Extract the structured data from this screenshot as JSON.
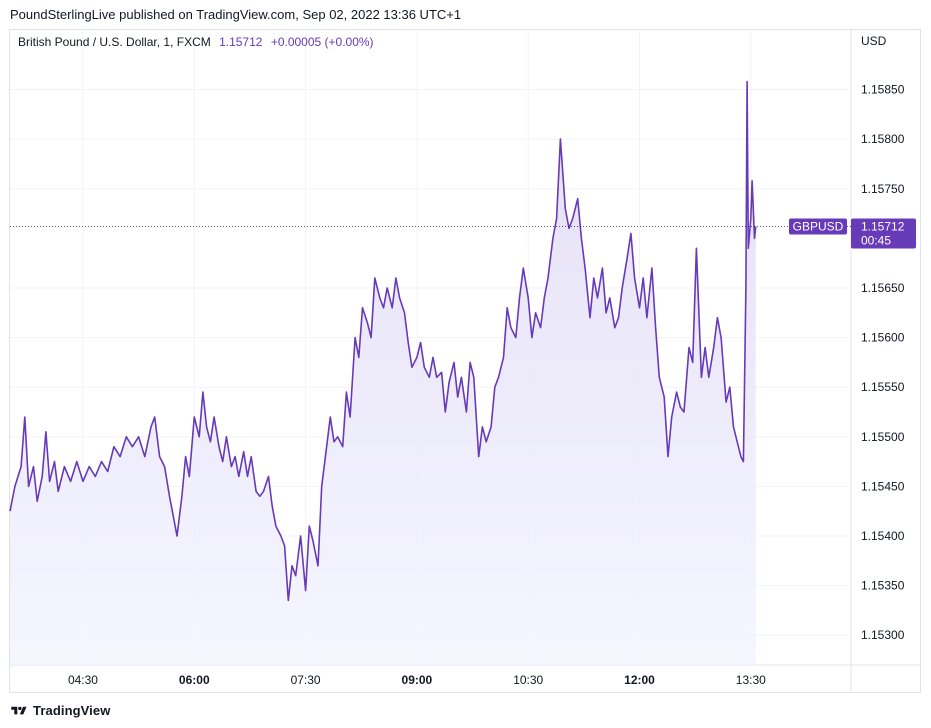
{
  "header": {
    "publisher_line": "PoundSterlingLive published on TradingView.com, Sep 02, 2022 13:36 UTC+1"
  },
  "legend": {
    "symbol": "British Pound / U.S. Dollar, 1, FXCM",
    "last": "1.15712",
    "change": "+0.00005 (+0.00%)"
  },
  "footer": {
    "brand": "TradingView",
    "logo_icon": "tradingview-logo-icon"
  },
  "colors": {
    "line": "#673ab7",
    "fill_top": "#e3ddf5",
    "fill_bottom": "#f4f5ff",
    "grid": "#f0f3fa",
    "text": "#131722"
  },
  "chart_data": {
    "type": "area",
    "y_axis_label": "USD",
    "ylim": [
      1.1527,
      1.1591
    ],
    "y_ticks": [
      "1.15850",
      "1.15800",
      "1.15750",
      "1.15650",
      "1.15600",
      "1.15550",
      "1.15500",
      "1.15450",
      "1.15400",
      "1.15350",
      "1.15300"
    ],
    "x_ticks": [
      {
        "label": "04:30",
        "time": "04:30",
        "bold": false
      },
      {
        "label": "06:00",
        "time": "06:00",
        "bold": true
      },
      {
        "label": "07:30",
        "time": "07:30",
        "bold": false
      },
      {
        "label": "09:00",
        "time": "09:00",
        "bold": true
      },
      {
        "label": "10:30",
        "time": "10:30",
        "bold": false
      },
      {
        "label": "12:00",
        "time": "12:00",
        "bold": true
      },
      {
        "label": "13:30",
        "time": "13:30",
        "bold": false
      }
    ],
    "x_range": [
      "03:31",
      "14:51"
    ],
    "last_price": 1.15712,
    "price_label": {
      "symbol": "GBPUSD",
      "value": "1.15712",
      "countdown": "00:45"
    },
    "series": [
      {
        "values": [
          [
            "03:31",
            1.15425
          ],
          [
            "03:35",
            1.1545
          ],
          [
            "03:40",
            1.1547
          ],
          [
            "03:43",
            1.1552
          ],
          [
            "03:46",
            1.1545
          ],
          [
            "03:50",
            1.1547
          ],
          [
            "03:53",
            1.15435
          ],
          [
            "03:57",
            1.1546
          ],
          [
            "04:00",
            1.15505
          ],
          [
            "04:03",
            1.15455
          ],
          [
            "04:07",
            1.15475
          ],
          [
            "04:10",
            1.15445
          ],
          [
            "04:15",
            1.1547
          ],
          [
            "04:20",
            1.15455
          ],
          [
            "04:25",
            1.15475
          ],
          [
            "04:30",
            1.15455
          ],
          [
            "04:35",
            1.1547
          ],
          [
            "04:40",
            1.1546
          ],
          [
            "04:45",
            1.15475
          ],
          [
            "04:50",
            1.15465
          ],
          [
            "04:55",
            1.1549
          ],
          [
            "05:00",
            1.1548
          ],
          [
            "05:05",
            1.155
          ],
          [
            "05:10",
            1.1549
          ],
          [
            "05:15",
            1.155
          ],
          [
            "05:20",
            1.1548
          ],
          [
            "05:25",
            1.1551
          ],
          [
            "05:28",
            1.1552
          ],
          [
            "05:32",
            1.1548
          ],
          [
            "05:36",
            1.1547
          ],
          [
            "05:40",
            1.1544
          ],
          [
            "05:43",
            1.1542
          ],
          [
            "05:46",
            1.154
          ],
          [
            "05:50",
            1.1544
          ],
          [
            "05:53",
            1.1548
          ],
          [
            "05:56",
            1.1546
          ],
          [
            "06:00",
            1.1552
          ],
          [
            "06:04",
            1.155
          ],
          [
            "06:07",
            1.15545
          ],
          [
            "06:10",
            1.1551
          ],
          [
            "06:13",
            1.15495
          ],
          [
            "06:16",
            1.1552
          ],
          [
            "06:20",
            1.1549
          ],
          [
            "06:23",
            1.15475
          ],
          [
            "06:26",
            1.155
          ],
          [
            "06:30",
            1.1547
          ],
          [
            "06:33",
            1.1548
          ],
          [
            "06:36",
            1.1546
          ],
          [
            "06:40",
            1.15485
          ],
          [
            "06:43",
            1.1546
          ],
          [
            "06:46",
            1.1548
          ],
          [
            "06:50",
            1.15445
          ],
          [
            "06:53",
            1.1544
          ],
          [
            "06:56",
            1.15445
          ],
          [
            "07:00",
            1.1546
          ],
          [
            "07:03",
            1.1543
          ],
          [
            "07:06",
            1.1541
          ],
          [
            "07:10",
            1.154
          ],
          [
            "07:13",
            1.1539
          ],
          [
            "07:16",
            1.15335
          ],
          [
            "07:19",
            1.1537
          ],
          [
            "07:22",
            1.1536
          ],
          [
            "07:26",
            1.154
          ],
          [
            "07:30",
            1.15345
          ],
          [
            "07:33",
            1.1541
          ],
          [
            "07:36",
            1.15395
          ],
          [
            "07:40",
            1.1537
          ],
          [
            "07:43",
            1.1545
          ],
          [
            "07:46",
            1.1548
          ],
          [
            "07:50",
            1.1552
          ],
          [
            "07:53",
            1.15495
          ],
          [
            "07:56",
            1.155
          ],
          [
            "08:00",
            1.1549
          ],
          [
            "08:03",
            1.15545
          ],
          [
            "08:06",
            1.1552
          ],
          [
            "08:10",
            1.156
          ],
          [
            "08:13",
            1.1558
          ],
          [
            "08:16",
            1.1563
          ],
          [
            "08:20",
            1.15615
          ],
          [
            "08:23",
            1.156
          ],
          [
            "08:26",
            1.1566
          ],
          [
            "08:30",
            1.1564
          ],
          [
            "08:33",
            1.1563
          ],
          [
            "08:36",
            1.1565
          ],
          [
            "08:40",
            1.1563
          ],
          [
            "08:43",
            1.1566
          ],
          [
            "08:46",
            1.1564
          ],
          [
            "08:50",
            1.15625
          ],
          [
            "08:53",
            1.15595
          ],
          [
            "08:56",
            1.1557
          ],
          [
            "09:00",
            1.1558
          ],
          [
            "09:03",
            1.15595
          ],
          [
            "09:06",
            1.1557
          ],
          [
            "09:10",
            1.1556
          ],
          [
            "09:13",
            1.1558
          ],
          [
            "09:16",
            1.1556
          ],
          [
            "09:20",
            1.15565
          ],
          [
            "09:23",
            1.15525
          ],
          [
            "09:26",
            1.15555
          ],
          [
            "09:30",
            1.15575
          ],
          [
            "09:33",
            1.1554
          ],
          [
            "09:36",
            1.1556
          ],
          [
            "09:40",
            1.15525
          ],
          [
            "09:43",
            1.15575
          ],
          [
            "09:46",
            1.1556
          ],
          [
            "09:50",
            1.1548
          ],
          [
            "09:53",
            1.1551
          ],
          [
            "09:56",
            1.15495
          ],
          [
            "10:00",
            1.1551
          ],
          [
            "10:03",
            1.1555
          ],
          [
            "10:06",
            1.1556
          ],
          [
            "10:10",
            1.1558
          ],
          [
            "10:13",
            1.1563
          ],
          [
            "10:16",
            1.1561
          ],
          [
            "10:20",
            1.156
          ],
          [
            "10:23",
            1.1564
          ],
          [
            "10:26",
            1.1567
          ],
          [
            "10:30",
            1.1564
          ],
          [
            "10:33",
            1.156
          ],
          [
            "10:36",
            1.15625
          ],
          [
            "10:40",
            1.1561
          ],
          [
            "10:43",
            1.1564
          ],
          [
            "10:46",
            1.1566
          ],
          [
            "10:50",
            1.157
          ],
          [
            "10:53",
            1.1572
          ],
          [
            "10:56",
            1.158
          ],
          [
            "11:00",
            1.1573
          ],
          [
            "11:03",
            1.1571
          ],
          [
            "11:06",
            1.1572
          ],
          [
            "11:10",
            1.1574
          ],
          [
            "11:13",
            1.157
          ],
          [
            "11:16",
            1.1567
          ],
          [
            "11:20",
            1.1562
          ],
          [
            "11:23",
            1.1566
          ],
          [
            "11:26",
            1.1564
          ],
          [
            "11:30",
            1.1567
          ],
          [
            "11:33",
            1.15625
          ],
          [
            "11:36",
            1.1564
          ],
          [
            "11:40",
            1.1561
          ],
          [
            "11:43",
            1.1562
          ],
          [
            "11:46",
            1.1565
          ],
          [
            "11:50",
            1.1568
          ],
          [
            "11:53",
            1.15705
          ],
          [
            "11:56",
            1.1566
          ],
          [
            "12:00",
            1.1563
          ],
          [
            "12:03",
            1.1566
          ],
          [
            "12:06",
            1.1562
          ],
          [
            "12:10",
            1.1567
          ],
          [
            "12:13",
            1.1561
          ],
          [
            "12:16",
            1.1556
          ],
          [
            "12:20",
            1.1554
          ],
          [
            "12:23",
            1.1548
          ],
          [
            "12:26",
            1.1552
          ],
          [
            "12:30",
            1.15545
          ],
          [
            "12:33",
            1.1553
          ],
          [
            "12:36",
            1.15525
          ],
          [
            "12:40",
            1.1559
          ],
          [
            "12:43",
            1.15575
          ],
          [
            "12:46",
            1.1569
          ],
          [
            "12:50",
            1.1556
          ],
          [
            "12:53",
            1.1559
          ],
          [
            "12:56",
            1.1556
          ],
          [
            "13:00",
            1.1559
          ],
          [
            "13:03",
            1.1562
          ],
          [
            "13:06",
            1.156
          ],
          [
            "13:10",
            1.15535
          ],
          [
            "13:13",
            1.1555
          ],
          [
            "13:16",
            1.1551
          ],
          [
            "13:19",
            1.15495
          ],
          [
            "13:22",
            1.1548
          ],
          [
            "13:24",
            1.15475
          ],
          [
            "13:26",
            1.1565
          ],
          [
            "13:27",
            1.15858
          ],
          [
            "13:28",
            1.1569
          ],
          [
            "13:30",
            1.1572
          ],
          [
            "13:31",
            1.15758
          ],
          [
            "13:33",
            1.157
          ],
          [
            "13:34",
            1.15712
          ]
        ]
      }
    ]
  }
}
